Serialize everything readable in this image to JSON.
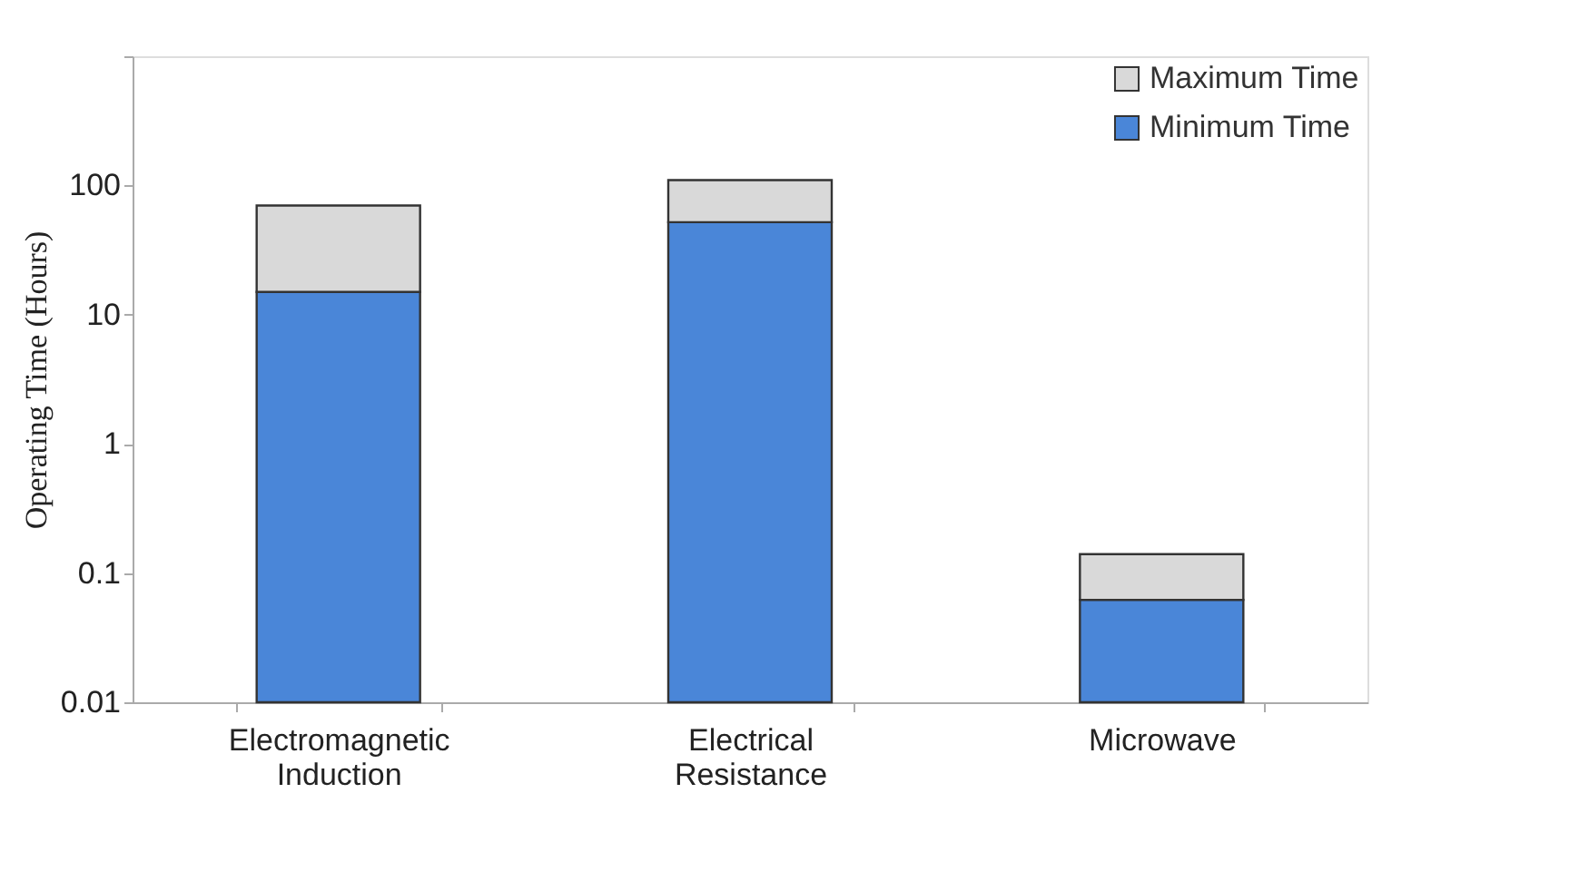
{
  "chart_data": {
    "type": "bar",
    "ylabel": "Operating Time (Hours)",
    "categories": [
      "Electromagnetic Induction",
      "Electrical Resistance",
      "Microwave"
    ],
    "stacked": true,
    "log": "y",
    "ylim": [
      0.01,
      1000
    ],
    "yticks": [
      0.01,
      0.1,
      1,
      10,
      100,
      {
        "value": 1000,
        "label": null
      }
    ],
    "grid": false,
    "legend": "top right",
    "series": [
      {
        "name": "Minimum Time",
        "color": "#4a86d8",
        "values": [
          15,
          52,
          0.062
        ]
      },
      {
        "name": "Maximum Time",
        "color": "#d9d9d9",
        "values": [
          55,
          58,
          0.078
        ]
      }
    ]
  }
}
